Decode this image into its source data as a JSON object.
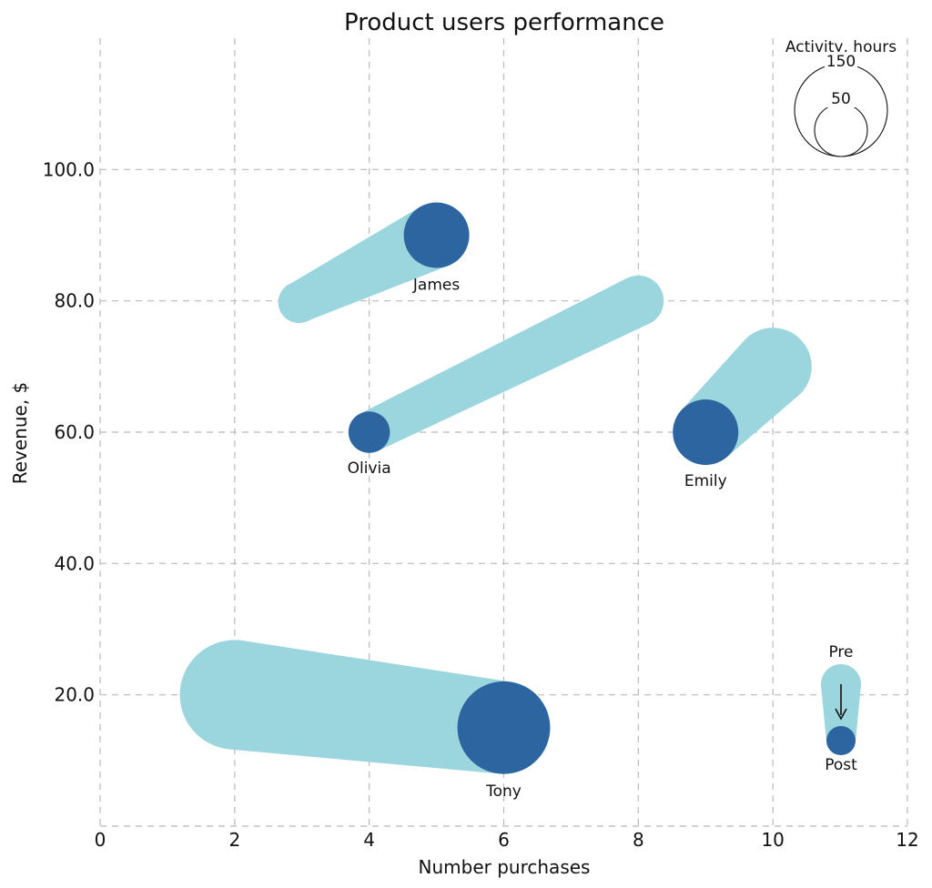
{
  "chart_data": {
    "type": "scatter",
    "title": "Product users performance",
    "xlabel": "Number purchases",
    "ylabel": "Revenue, $",
    "xlim": [
      0,
      12
    ],
    "ylim": [
      0,
      120
    ],
    "x_ticks": [
      0,
      2,
      4,
      6,
      8,
      10,
      12
    ],
    "y_ticks": [
      20,
      40,
      60,
      80,
      100
    ],
    "y_tick_labels": [
      "20.0",
      "40.0",
      "60.0",
      "80.0",
      "100.0"
    ],
    "grid": true,
    "colors": {
      "pre": "#9bd6df",
      "post": "#2c659f"
    },
    "users": [
      {
        "name": "James",
        "pre": {
          "x": 3,
          "y": 80,
          "activity": 40
        },
        "post": {
          "x": 5,
          "y": 90,
          "activity": 100
        }
      },
      {
        "name": "Olivia",
        "pre": {
          "x": 8,
          "y": 80,
          "activity": 60
        },
        "post": {
          "x": 4,
          "y": 60,
          "activity": 40
        }
      },
      {
        "name": "Emily",
        "pre": {
          "x": 10,
          "y": 70,
          "activity": 140
        },
        "post": {
          "x": 9,
          "y": 60,
          "activity": 100
        }
      },
      {
        "name": "Tony",
        "pre": {
          "x": 2,
          "y": 20,
          "activity": 280
        },
        "post": {
          "x": 6,
          "y": 15,
          "activity": 200
        }
      }
    ],
    "size_legend": {
      "title": "Activity, hours",
      "values": [
        150,
        50
      ]
    },
    "direction_legend": {
      "pre_label": "Pre",
      "post_label": "Post"
    }
  }
}
